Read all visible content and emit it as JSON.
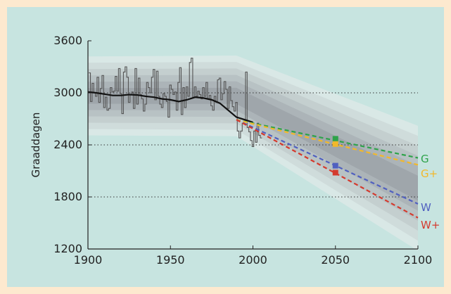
{
  "chart_data": {
    "type": "line",
    "title": "",
    "xlabel": "",
    "ylabel": "Graaddagen",
    "xlim": [
      1900,
      2100
    ],
    "ylim": [
      1200,
      3600
    ],
    "x_ticks": [
      1900,
      1950,
      2000,
      2050,
      2100
    ],
    "y_ticks": [
      1200,
      1800,
      2400,
      3000,
      3600
    ],
    "grid": "dotted horizontal at 1800, 2400, 3000",
    "observed": {
      "name": "",
      "type": "step",
      "color": "#555555",
      "x": [
        1901,
        1902,
        1903,
        1904,
        1905,
        1906,
        1907,
        1908,
        1909,
        1910,
        1911,
        1912,
        1913,
        1914,
        1915,
        1916,
        1917,
        1918,
        1919,
        1920,
        1921,
        1922,
        1923,
        1924,
        1925,
        1926,
        1927,
        1928,
        1929,
        1930,
        1931,
        1932,
        1933,
        1934,
        1935,
        1936,
        1937,
        1938,
        1939,
        1940,
        1941,
        1942,
        1943,
        1944,
        1945,
        1946,
        1947,
        1948,
        1949,
        1950,
        1951,
        1952,
        1953,
        1954,
        1955,
        1956,
        1957,
        1958,
        1959,
        1960,
        1961,
        1962,
        1963,
        1964,
        1965,
        1966,
        1967,
        1968,
        1969,
        1970,
        1971,
        1972,
        1973,
        1974,
        1975,
        1976,
        1977,
        1978,
        1979,
        1980,
        1981,
        1982,
        1983,
        1984,
        1985,
        1986,
        1987,
        1988,
        1989,
        1990,
        1991,
        1992,
        1993,
        1994,
        1995,
        1996,
        1997,
        1998,
        1999,
        2000,
        2001,
        2002,
        2003,
        2004,
        2005
      ],
      "y": [
        3230,
        2900,
        3110,
        3000,
        2960,
        3180,
        2890,
        3050,
        3200,
        2830,
        2950,
        2800,
        2820,
        3060,
        3010,
        3020,
        3190,
        3020,
        3280,
        2990,
        2760,
        3240,
        3300,
        3180,
        2890,
        2980,
        3010,
        2820,
        3280,
        2870,
        3170,
        2980,
        2930,
        2790,
        2870,
        3120,
        3060,
        3000,
        3180,
        3270,
        2920,
        3250,
        2960,
        2870,
        2830,
        2990,
        2960,
        2900,
        2720,
        3090,
        3040,
        2980,
        3010,
        2800,
        3120,
        3290,
        2750,
        3060,
        2830,
        3070,
        2960,
        3350,
        3400,
        2950,
        3070,
        2960,
        3020,
        2980,
        2930,
        3060,
        2960,
        3120,
        2930,
        2970,
        2850,
        2800,
        2960,
        2890,
        3150,
        3170,
        2920,
        2990,
        3130,
        3040,
        2820,
        3070,
        2910,
        2840,
        2790,
        2890,
        2560,
        2480,
        2560,
        2650,
        2670,
        3240,
        2600,
        2550,
        2450,
        2380,
        2560,
        2430,
        2650,
        2510,
        2480
      ]
    },
    "smoothed": {
      "name": "",
      "color": "#111111",
      "x": [
        1900,
        1905,
        1910,
        1915,
        1920,
        1925,
        1930,
        1935,
        1940,
        1945,
        1950,
        1955,
        1960,
        1965,
        1970,
        1975,
        1980,
        1985,
        1990,
        1995,
        2000
      ],
      "y": [
        3010,
        3000,
        2985,
        2970,
        2970,
        2980,
        2975,
        2960,
        2950,
        2930,
        2920,
        2900,
        2920,
        2950,
        2940,
        2920,
        2880,
        2800,
        2720,
        2690,
        2660
      ]
    },
    "uncertainty_band": {
      "x": [
        1900,
        1990,
        2100
      ],
      "lower_outer": [
        2510,
        2500,
        1180
      ],
      "upper_outer": [
        3420,
        3430,
        2620
      ]
    },
    "scenarios": [
      {
        "name": "G",
        "color": "#2ea34a",
        "x": [
          1990,
          2100
        ],
        "y": [
          2690,
          2250
        ],
        "marker_2050": 2470
      },
      {
        "name": "G+",
        "color": "#f2b82a",
        "x": [
          1990,
          2100
        ],
        "y": [
          2690,
          2170
        ],
        "marker_2050": 2410
      },
      {
        "name": "W",
        "color": "#5060c0",
        "x": [
          1990,
          2100
        ],
        "y": [
          2690,
          1720
        ],
        "marker_2050": 2160
      },
      {
        "name": "W+",
        "color": "#d43a2e",
        "x": [
          1990,
          2100
        ],
        "y": [
          2690,
          1560
        ],
        "marker_2050": 2080
      }
    ],
    "label_color_axis": "#222222"
  }
}
